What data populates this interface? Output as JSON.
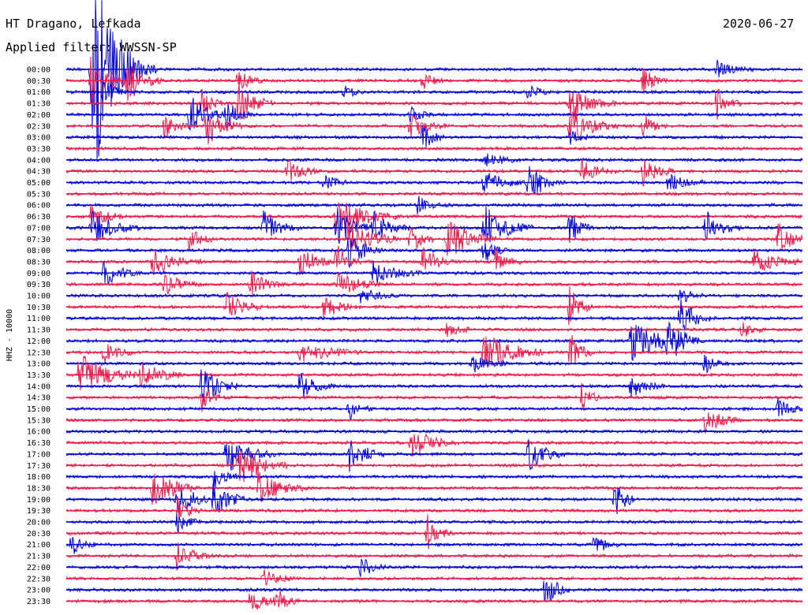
{
  "header": {
    "station": "HT Dragano, Lefkada",
    "date": "2020-06-27",
    "filter": "Applied filter: WWSSN-SP"
  },
  "chart_data": {
    "type": "line",
    "title": "HT Dragano, Lefkada",
    "subtitle": "Applied filter: WWSSN-SP",
    "date": "2020-06-27",
    "ylabel": "HHZ - 10000",
    "xlabel": "",
    "row_labels": [
      "00:00",
      "00:30",
      "01:00",
      "01:30",
      "02:00",
      "02:30",
      "03:00",
      "03:30",
      "04:00",
      "04:30",
      "05:00",
      "05:30",
      "06:00",
      "06:30",
      "07:00",
      "07:30",
      "08:00",
      "08:30",
      "09:00",
      "09:30",
      "10:00",
      "10:30",
      "11:00",
      "11:30",
      "12:00",
      "12:30",
      "13:00",
      "13:30",
      "14:00",
      "14:30",
      "15:00",
      "15:30",
      "16:00",
      "16:30",
      "17:00",
      "17:30",
      "18:00",
      "18:30",
      "19:00",
      "19:30",
      "20:00",
      "20:30",
      "21:00",
      "21:30",
      "22:00",
      "22:30",
      "23:00",
      "23:30"
    ],
    "trace_colors": [
      "#0000dd",
      "#ee1a4a"
    ],
    "minutes_per_row": 30,
    "events": [
      {
        "row": 0,
        "minute": 1.0,
        "amplitude": 3.0,
        "duration": 2.0
      },
      {
        "row": 0,
        "minute": 1.2,
        "amplitude": 2.0,
        "duration": 2.5
      },
      {
        "row": 0,
        "minute": 26.5,
        "amplitude": 0.4,
        "duration": 1.5
      },
      {
        "row": 1,
        "minute": 1.0,
        "amplitude": 1.0,
        "duration": 2.0
      },
      {
        "row": 1,
        "minute": 2.5,
        "amplitude": 0.8,
        "duration": 1.5
      },
      {
        "row": 1,
        "minute": 7.0,
        "amplitude": 0.6,
        "duration": 1.0
      },
      {
        "row": 1,
        "minute": 14.5,
        "amplitude": 0.4,
        "duration": 1.0
      },
      {
        "row": 1,
        "minute": 23.5,
        "amplitude": 0.6,
        "duration": 1.0
      },
      {
        "row": 2,
        "minute": 1.5,
        "amplitude": 0.7,
        "duration": 1.0
      },
      {
        "row": 2,
        "minute": 11.3,
        "amplitude": 0.3,
        "duration": 1.0
      },
      {
        "row": 2,
        "minute": 18.8,
        "amplitude": 0.4,
        "duration": 1.0
      },
      {
        "row": 3,
        "minute": 5.5,
        "amplitude": 0.6,
        "duration": 1.0
      },
      {
        "row": 3,
        "minute": 7.0,
        "amplitude": 1.0,
        "duration": 1.5
      },
      {
        "row": 3,
        "minute": 20.5,
        "amplitude": 0.7,
        "duration": 2.0
      },
      {
        "row": 3,
        "minute": 26.5,
        "amplitude": 0.8,
        "duration": 1.0
      },
      {
        "row": 4,
        "minute": 5.0,
        "amplitude": 1.0,
        "duration": 1.5
      },
      {
        "row": 4,
        "minute": 6.5,
        "amplitude": 0.7,
        "duration": 1.0
      },
      {
        "row": 4,
        "minute": 14.0,
        "amplitude": 0.4,
        "duration": 1.0
      },
      {
        "row": 5,
        "minute": 4.0,
        "amplitude": 0.6,
        "duration": 1.0
      },
      {
        "row": 5,
        "minute": 5.7,
        "amplitude": 0.9,
        "duration": 1.5
      },
      {
        "row": 5,
        "minute": 14.0,
        "amplitude": 0.6,
        "duration": 1.5
      },
      {
        "row": 5,
        "minute": 20.5,
        "amplitude": 0.8,
        "duration": 2.0
      },
      {
        "row": 5,
        "minute": 23.5,
        "amplitude": 0.5,
        "duration": 1.0
      },
      {
        "row": 6,
        "minute": 14.5,
        "amplitude": 0.6,
        "duration": 1.0
      },
      {
        "row": 6,
        "minute": 20.5,
        "amplitude": 0.4,
        "duration": 1.0
      },
      {
        "row": 8,
        "minute": 17.0,
        "amplitude": 0.4,
        "duration": 1.5
      },
      {
        "row": 9,
        "minute": 9.0,
        "amplitude": 0.5,
        "duration": 1.5
      },
      {
        "row": 9,
        "minute": 21.0,
        "amplitude": 0.5,
        "duration": 1.5
      },
      {
        "row": 9,
        "minute": 23.5,
        "amplitude": 0.6,
        "duration": 1.5
      },
      {
        "row": 10,
        "minute": 10.5,
        "amplitude": 0.4,
        "duration": 1.0
      },
      {
        "row": 10,
        "minute": 17.0,
        "amplitude": 0.5,
        "duration": 2.0
      },
      {
        "row": 10,
        "minute": 18.8,
        "amplitude": 0.9,
        "duration": 1.5
      },
      {
        "row": 10,
        "minute": 24.5,
        "amplitude": 0.4,
        "duration": 1.5
      },
      {
        "row": 12,
        "minute": 14.3,
        "amplitude": 0.4,
        "duration": 1.0
      },
      {
        "row": 13,
        "minute": 1.0,
        "amplitude": 0.5,
        "duration": 1.5
      },
      {
        "row": 13,
        "minute": 11.0,
        "amplitude": 0.9,
        "duration": 2.5
      },
      {
        "row": 14,
        "minute": 1.0,
        "amplitude": 0.8,
        "duration": 2.0
      },
      {
        "row": 14,
        "minute": 8.0,
        "amplitude": 0.8,
        "duration": 1.5
      },
      {
        "row": 14,
        "minute": 11.0,
        "amplitude": 1.0,
        "duration": 1.5
      },
      {
        "row": 14,
        "minute": 12.5,
        "amplitude": 0.8,
        "duration": 1.5
      },
      {
        "row": 14,
        "minute": 17.0,
        "amplitude": 1.0,
        "duration": 2.0
      },
      {
        "row": 14,
        "minute": 20.5,
        "amplitude": 0.8,
        "duration": 1.0
      },
      {
        "row": 14,
        "minute": 26.0,
        "amplitude": 0.8,
        "duration": 1.5
      },
      {
        "row": 15,
        "minute": 5.0,
        "amplitude": 0.6,
        "duration": 1.0
      },
      {
        "row": 15,
        "minute": 11.5,
        "amplitude": 1.0,
        "duration": 2.0
      },
      {
        "row": 15,
        "minute": 14.0,
        "amplitude": 0.7,
        "duration": 1.0
      },
      {
        "row": 15,
        "minute": 15.5,
        "amplitude": 1.0,
        "duration": 2.0
      },
      {
        "row": 15,
        "minute": 29.0,
        "amplitude": 0.7,
        "duration": 1.5
      },
      {
        "row": 16,
        "minute": 11.5,
        "amplitude": 0.7,
        "duration": 1.5
      },
      {
        "row": 16,
        "minute": 17.0,
        "amplitude": 0.6,
        "duration": 1.0
      },
      {
        "row": 17,
        "minute": 3.5,
        "amplitude": 0.6,
        "duration": 2.0
      },
      {
        "row": 17,
        "minute": 9.5,
        "amplitude": 0.6,
        "duration": 2.0
      },
      {
        "row": 17,
        "minute": 11.0,
        "amplitude": 0.7,
        "duration": 1.0
      },
      {
        "row": 17,
        "minute": 14.5,
        "amplitude": 0.6,
        "duration": 1.5
      },
      {
        "row": 17,
        "minute": 17.5,
        "amplitude": 0.6,
        "duration": 1.0
      },
      {
        "row": 17,
        "minute": 28.0,
        "amplitude": 0.6,
        "duration": 2.0
      },
      {
        "row": 18,
        "minute": 1.5,
        "amplitude": 0.6,
        "duration": 1.5
      },
      {
        "row": 18,
        "minute": 12.5,
        "amplitude": 0.5,
        "duration": 2.0
      },
      {
        "row": 19,
        "minute": 4.0,
        "amplitude": 0.5,
        "duration": 1.5
      },
      {
        "row": 19,
        "minute": 7.5,
        "amplitude": 0.6,
        "duration": 1.5
      },
      {
        "row": 19,
        "minute": 11.0,
        "amplitude": 0.6,
        "duration": 2.0
      },
      {
        "row": 20,
        "minute": 12.0,
        "amplitude": 0.4,
        "duration": 1.5
      },
      {
        "row": 20,
        "minute": 25.0,
        "amplitude": 0.4,
        "duration": 1.0
      },
      {
        "row": 21,
        "minute": 6.5,
        "amplitude": 0.7,
        "duration": 1.5
      },
      {
        "row": 21,
        "minute": 10.5,
        "amplitude": 0.5,
        "duration": 1.5
      },
      {
        "row": 21,
        "minute": 20.5,
        "amplitude": 0.9,
        "duration": 1.0
      },
      {
        "row": 22,
        "minute": 25.0,
        "amplitude": 0.9,
        "duration": 1.5
      },
      {
        "row": 23,
        "minute": 15.5,
        "amplitude": 0.4,
        "duration": 1.0
      },
      {
        "row": 23,
        "minute": 27.5,
        "amplitude": 0.4,
        "duration": 1.0
      },
      {
        "row": 24,
        "minute": 23.0,
        "amplitude": 1.0,
        "duration": 2.5
      },
      {
        "row": 24,
        "minute": 24.5,
        "amplitude": 0.8,
        "duration": 1.5
      },
      {
        "row": 25,
        "minute": 1.5,
        "amplitude": 0.4,
        "duration": 1.5
      },
      {
        "row": 25,
        "minute": 9.5,
        "amplitude": 0.5,
        "duration": 2.5
      },
      {
        "row": 25,
        "minute": 17.0,
        "amplitude": 0.9,
        "duration": 2.5
      },
      {
        "row": 25,
        "minute": 20.5,
        "amplitude": 0.9,
        "duration": 1.0
      },
      {
        "row": 26,
        "minute": 16.5,
        "amplitude": 0.4,
        "duration": 1.5
      },
      {
        "row": 26,
        "minute": 26.0,
        "amplitude": 0.4,
        "duration": 1.0
      },
      {
        "row": 27,
        "minute": 0.5,
        "amplitude": 1.0,
        "duration": 2.5
      },
      {
        "row": 27,
        "minute": 3.0,
        "amplitude": 0.6,
        "duration": 2.0
      },
      {
        "row": 28,
        "minute": 5.5,
        "amplitude": 0.9,
        "duration": 1.5
      },
      {
        "row": 28,
        "minute": 9.5,
        "amplitude": 0.6,
        "duration": 1.5
      },
      {
        "row": 28,
        "minute": 23.0,
        "amplitude": 0.5,
        "duration": 1.5
      },
      {
        "row": 29,
        "minute": 5.5,
        "amplitude": 0.6,
        "duration": 1.0
      },
      {
        "row": 29,
        "minute": 21.0,
        "amplitude": 0.6,
        "duration": 1.0
      },
      {
        "row": 30,
        "minute": 11.5,
        "amplitude": 0.5,
        "duration": 1.0
      },
      {
        "row": 30,
        "minute": 29.0,
        "amplitude": 0.5,
        "duration": 1.0
      },
      {
        "row": 31,
        "minute": 26.0,
        "amplitude": 0.6,
        "duration": 1.5
      },
      {
        "row": 33,
        "minute": 14.0,
        "amplitude": 0.7,
        "duration": 2.0
      },
      {
        "row": 34,
        "minute": 6.5,
        "amplitude": 0.9,
        "duration": 2.0
      },
      {
        "row": 34,
        "minute": 11.5,
        "amplitude": 0.8,
        "duration": 1.5
      },
      {
        "row": 34,
        "minute": 18.8,
        "amplitude": 0.8,
        "duration": 1.5
      },
      {
        "row": 35,
        "minute": 7.0,
        "amplitude": 1.0,
        "duration": 2.0
      },
      {
        "row": 36,
        "minute": 6.0,
        "amplitude": 0.6,
        "duration": 1.0
      },
      {
        "row": 37,
        "minute": 3.5,
        "amplitude": 0.8,
        "duration": 2.0
      },
      {
        "row": 37,
        "minute": 7.8,
        "amplitude": 0.7,
        "duration": 2.0
      },
      {
        "row": 38,
        "minute": 4.5,
        "amplitude": 0.8,
        "duration": 1.5
      },
      {
        "row": 38,
        "minute": 6.0,
        "amplitude": 0.8,
        "duration": 1.5
      },
      {
        "row": 38,
        "minute": 22.3,
        "amplitude": 1.0,
        "duration": 1.0
      },
      {
        "row": 39,
        "minute": 4.5,
        "amplitude": 0.6,
        "duration": 1.0
      },
      {
        "row": 40,
        "minute": 4.5,
        "amplitude": 0.5,
        "duration": 1.0
      },
      {
        "row": 41,
        "minute": 14.7,
        "amplitude": 0.8,
        "duration": 1.0
      },
      {
        "row": 42,
        "minute": 0.2,
        "amplitude": 0.5,
        "duration": 1.0
      },
      {
        "row": 42,
        "minute": 21.5,
        "amplitude": 0.5,
        "duration": 1.0
      },
      {
        "row": 43,
        "minute": 4.5,
        "amplitude": 0.6,
        "duration": 1.5
      },
      {
        "row": 44,
        "minute": 12.0,
        "amplitude": 0.5,
        "duration": 1.0
      },
      {
        "row": 45,
        "minute": 8.0,
        "amplitude": 0.4,
        "duration": 1.5
      },
      {
        "row": 46,
        "minute": 19.5,
        "amplitude": 0.9,
        "duration": 1.0
      },
      {
        "row": 47,
        "minute": 7.5,
        "amplitude": 0.7,
        "duration": 1.0
      },
      {
        "row": 47,
        "minute": 8.5,
        "amplitude": 0.7,
        "duration": 1.0
      }
    ]
  }
}
